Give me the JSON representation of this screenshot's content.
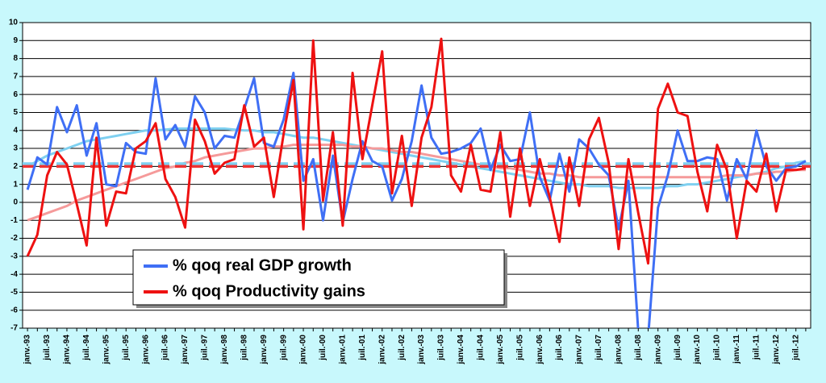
{
  "chart_data": {
    "type": "line",
    "categories": [
      "janv.-93",
      null,
      "juil.-93",
      null,
      "janv.-94",
      null,
      "juil.-94",
      null,
      "janv.-95",
      null,
      "juil.-95",
      null,
      "janv.-96",
      null,
      "juil.-96",
      null,
      "janv.-97",
      null,
      "juil.-97",
      null,
      "janv.-98",
      null,
      "juil.-98",
      null,
      "janv.-99",
      null,
      "juil.-99",
      null,
      "janv.-00",
      null,
      "juil.-00",
      null,
      "janv.-01",
      null,
      "juil.-01",
      null,
      "janv.-02",
      null,
      "juil.-02",
      null,
      "janv.-03",
      null,
      "juil.-03",
      null,
      "janv.-04",
      null,
      "juil.-04",
      null,
      "janv.-05",
      null,
      "juil.-05",
      null,
      "janv.-06",
      null,
      "juil.-06",
      null,
      "janv.-07",
      null,
      "juil.-07",
      null,
      "janv.-08",
      null,
      "juil.-08",
      null,
      "janv.-09",
      null,
      "juil.-09",
      null,
      "janv.-10",
      null,
      "juil.-10",
      null,
      "janv.-11",
      null,
      "juil.-11",
      null,
      "janv.-12",
      null,
      "juil.-12",
      null
    ],
    "series": [
      {
        "name": "% qoq real GDP growth",
        "color": "#3f6ff5",
        "values": [
          0.7,
          2.5,
          2.1,
          5.3,
          3.9,
          5.4,
          2.6,
          4.4,
          1.0,
          0.9,
          3.3,
          2.8,
          2.7,
          6.9,
          3.5,
          4.3,
          3.1,
          5.9,
          5.0,
          3.0,
          3.7,
          3.6,
          5.2,
          6.9,
          3.3,
          3.1,
          4.6,
          7.2,
          1.2,
          2.4,
          -1.0,
          2.6,
          -1.1,
          1.3,
          3.4,
          2.3,
          2.0,
          0.1,
          1.3,
          3.4,
          6.5,
          3.6,
          2.7,
          2.8,
          3.0,
          3.3,
          4.1,
          1.8,
          3.2,
          2.3,
          2.4,
          5.0,
          1.4,
          0.1,
          2.7,
          0.6,
          3.5,
          3.0,
          2.1,
          1.5,
          -1.5,
          1.2,
          -7.2,
          -7.5,
          -0.3,
          1.5,
          4.0,
          2.3,
          2.3,
          2.5,
          2.4,
          0.1,
          2.4,
          1.3,
          4.0,
          2.0,
          1.2,
          1.9,
          2.0,
          2.3
        ]
      },
      {
        "name": "% qoq Productivity gains",
        "color": "#ee1111",
        "values": [
          -3.0,
          -1.8,
          1.5,
          2.8,
          2.1,
          -0.1,
          -2.4,
          3.6,
          -1.3,
          0.6,
          0.5,
          3.0,
          3.4,
          4.4,
          1.3,
          0.3,
          -1.4,
          4.6,
          3.4,
          1.6,
          2.2,
          2.4,
          5.4,
          3.1,
          3.6,
          0.3,
          3.8,
          6.8,
          -1.5,
          9.0,
          0.1,
          3.9,
          -1.3,
          7.2,
          2.4,
          5.4,
          8.4,
          0.5,
          3.7,
          -0.2,
          3.6,
          5.3,
          9.1,
          1.5,
          0.6,
          3.2,
          0.7,
          0.6,
          3.9,
          -0.8,
          3.0,
          -0.2,
          2.4,
          0.3,
          -2.2,
          2.5,
          -0.2,
          3.5,
          4.7,
          2.2,
          -2.6,
          2.4,
          -0.6,
          -3.4,
          5.2,
          6.6,
          5.0,
          4.8,
          1.7,
          -0.5,
          3.2,
          1.8,
          -2.0,
          1.2,
          0.6,
          2.7,
          -0.5,
          1.8,
          1.8,
          1.9
        ]
      }
    ],
    "trend_lines": [
      {
        "color": "#7fd0f0",
        "values": [
          2.0,
          2.3,
          2.6,
          2.8,
          3.0,
          3.2,
          3.4,
          3.5,
          3.6,
          3.7,
          3.8,
          3.9,
          4.0,
          4.0,
          4.05,
          4.1,
          4.1,
          4.1,
          4.1,
          4.1,
          4.1,
          4.05,
          4.0,
          4.0,
          3.9,
          3.9,
          3.8,
          3.7,
          3.6,
          3.6,
          3.5,
          3.4,
          3.3,
          3.2,
          3.1,
          3.0,
          2.9,
          2.8,
          2.7,
          2.6,
          2.5,
          2.4,
          2.3,
          2.2,
          2.1,
          2.0,
          1.9,
          1.8,
          1.7,
          1.6,
          1.5,
          1.4,
          1.3,
          1.2,
          1.1,
          1.0,
          1.0,
          0.9,
          0.9,
          0.9,
          0.8,
          0.8,
          0.8,
          0.8,
          0.8,
          0.9,
          0.9,
          1.0,
          1.0,
          1.1,
          1.2,
          1.3,
          1.4,
          1.5,
          1.6,
          1.7,
          1.9,
          2.0,
          2.2,
          2.3
        ]
      },
      {
        "color": "#f59a9a",
        "values": [
          -1.0,
          -0.8,
          -0.6,
          -0.4,
          -0.2,
          0.1,
          0.3,
          0.5,
          0.7,
          0.9,
          1.1,
          1.3,
          1.5,
          1.7,
          1.9,
          2.0,
          2.2,
          2.3,
          2.5,
          2.6,
          2.7,
          2.8,
          2.9,
          3.0,
          3.0,
          3.1,
          3.1,
          3.2,
          3.2,
          3.2,
          3.2,
          3.2,
          3.2,
          3.1,
          3.1,
          3.0,
          3.0,
          2.9,
          2.8,
          2.8,
          2.7,
          2.6,
          2.5,
          2.4,
          2.3,
          2.2,
          2.1,
          2.0,
          1.9,
          1.9,
          1.8,
          1.7,
          1.6,
          1.6,
          1.5,
          1.5,
          1.4,
          1.4,
          1.4,
          1.4,
          1.4,
          1.4,
          1.4,
          1.4,
          1.4,
          1.4,
          1.4,
          1.4,
          1.4,
          1.4,
          1.4,
          1.5,
          1.5,
          1.5,
          1.6,
          1.6,
          1.7,
          1.7,
          1.8,
          1.8
        ]
      }
    ],
    "reference_lines": [
      {
        "value": 2.15,
        "color": "#7fd0f0"
      },
      {
        "value": 2.0,
        "color": "#ee3333"
      }
    ],
    "ylim": [
      -7,
      10
    ],
    "yticks": [
      -7,
      -6,
      -5,
      -4,
      -3,
      -2,
      -1,
      0,
      1,
      2,
      3,
      4,
      5,
      6,
      7,
      8,
      9,
      10
    ],
    "grid": true
  }
}
